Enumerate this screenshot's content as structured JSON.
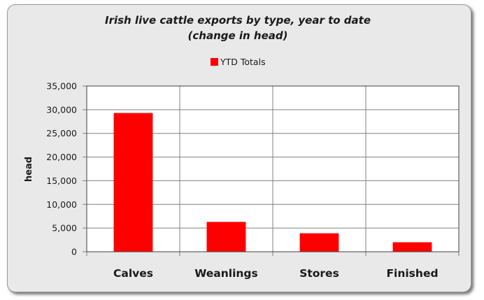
{
  "chart_data": {
    "type": "bar",
    "title": "Irish live cattle exports by type, year to date",
    "subtitle": "(change in head)",
    "categories": [
      "Calves",
      "Weanlings",
      "Stores",
      "Finished"
    ],
    "series": [
      {
        "name": "YTD Totals",
        "values": [
          29300,
          6300,
          3900,
          2000
        ],
        "color": "#ff0000"
      }
    ],
    "xlabel": "",
    "ylabel": "head",
    "ylim": [
      0,
      35000
    ],
    "yticks": [
      0,
      5000,
      10000,
      15000,
      20000,
      25000,
      30000,
      35000
    ],
    "ytick_labels": [
      "0",
      "5,000",
      "10,000",
      "15,000",
      "20,000",
      "25,000",
      "30,000",
      "35,000"
    ],
    "grid": true,
    "legend_position": "top-center"
  }
}
